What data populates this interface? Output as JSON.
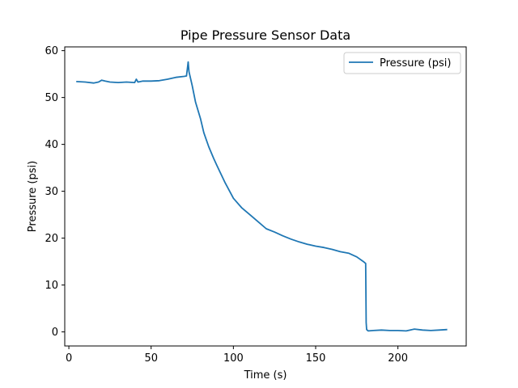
{
  "chart_data": {
    "type": "line",
    "title": "Pipe Pressure Sensor Data",
    "xlabel": "Time (s)",
    "ylabel": "Pressure (psi)",
    "xlim": [
      -2.5,
      241.5
    ],
    "ylim": [
      -3.0,
      60.8
    ],
    "xticks": [
      0,
      50,
      100,
      150,
      200
    ],
    "yticks": [
      0,
      10,
      20,
      30,
      40,
      50,
      60
    ],
    "xtick_labels": [
      "0",
      "50",
      "100",
      "150",
      "200"
    ],
    "ytick_labels": [
      "0",
      "10",
      "20",
      "30",
      "40",
      "50",
      "60"
    ],
    "grid": false,
    "legend_position": "top-right",
    "series": [
      {
        "name": "Pressure (psi)",
        "color": "#1f77b4",
        "x": [
          4.5,
          10,
          15,
          18,
          20,
          22,
          25,
          30,
          35,
          40,
          41,
          42,
          45,
          50,
          55,
          60,
          65,
          70,
          71.5,
          72.5,
          73,
          75,
          77,
          80,
          82,
          85,
          88,
          90,
          95,
          100,
          105,
          110,
          115,
          120,
          125,
          130,
          135,
          140,
          145,
          150,
          155,
          160,
          165,
          170,
          175,
          179,
          180.4,
          180.7,
          181,
          182,
          185,
          190,
          195,
          200,
          205,
          210,
          215,
          220,
          225,
          230
        ],
        "y": [
          53.4,
          53.3,
          53.1,
          53.3,
          53.7,
          53.5,
          53.3,
          53.2,
          53.3,
          53.2,
          53.9,
          53.3,
          53.5,
          53.5,
          53.6,
          53.9,
          54.3,
          54.5,
          54.6,
          57.6,
          55.5,
          52.5,
          49.0,
          45.5,
          42.5,
          39.5,
          37.0,
          35.5,
          31.8,
          28.5,
          26.5,
          25.0,
          23.5,
          22.0,
          21.3,
          20.5,
          19.8,
          19.2,
          18.7,
          18.3,
          18.0,
          17.6,
          17.1,
          16.8,
          16.0,
          15.0,
          14.6,
          2.0,
          0.5,
          0.2,
          0.3,
          0.4,
          0.3,
          0.3,
          0.2,
          0.6,
          0.4,
          0.3,
          0.4,
          0.5
        ]
      }
    ]
  }
}
